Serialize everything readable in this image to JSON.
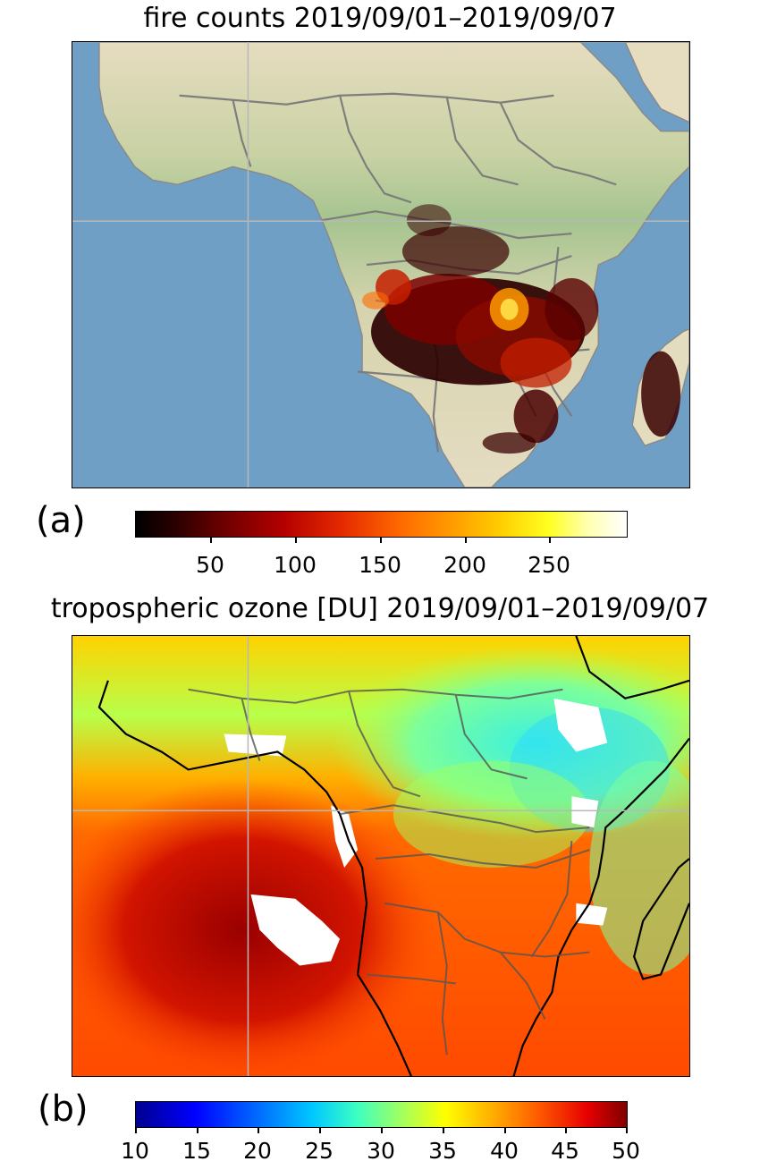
{
  "panel_a": {
    "title": "fire counts 2019/09/01–2019/09/07",
    "label": "(a)",
    "colorbar": {
      "colormap": "hot",
      "ticks": [
        "50",
        "100",
        "150",
        "200",
        "250"
      ],
      "range": [
        5,
        295
      ]
    },
    "colors": {
      "ocean": "#6f9fc4",
      "land": "#e3dcbe",
      "vegetation": "#a9c492",
      "borders": "#7a7a7a",
      "grid": "#b8b8b8"
    }
  },
  "panel_b": {
    "title": "tropospheric ozone [DU] 2019/09/01–2019/09/07",
    "label": "(b)",
    "colorbar": {
      "colormap": "jet",
      "ticks": [
        "10",
        "15",
        "20",
        "25",
        "30",
        "35",
        "40",
        "45",
        "50"
      ],
      "range": [
        10,
        50
      ]
    },
    "colors": {
      "coastline": "#000000",
      "borders": "#555555",
      "grid": "#b8b8b8",
      "missing": "#ffffff"
    }
  }
}
